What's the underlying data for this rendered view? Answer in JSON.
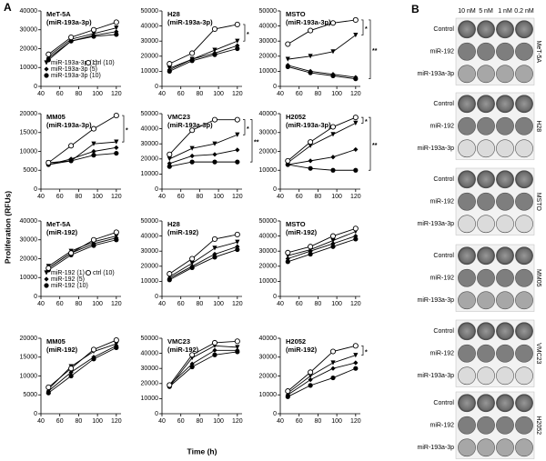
{
  "panel_labels": [
    "A",
    "B"
  ],
  "y_axis_label": "Proliferation (RFUs)",
  "x_axis_label": "Time (h)",
  "chart_data": [
    {
      "type": "line",
      "title": "MeT-5A",
      "subtitle": "(miR-193a-3p)",
      "x": [
        48,
        72,
        96,
        120
      ],
      "xlim": [
        40,
        125
      ],
      "xticks": [
        40,
        60,
        80,
        100,
        120
      ],
      "ylim": [
        0,
        40000
      ],
      "yticks": [
        0,
        10000,
        20000,
        30000,
        40000
      ],
      "legend": "lower",
      "series": [
        {
          "name": "miR-193a-3p (1)",
          "marker": "triangle-down",
          "color": "#000000",
          "values": [
            16000,
            25000,
            28000,
            31000
          ]
        },
        {
          "name": "miR-193a-3p (5)",
          "marker": "diamond",
          "color": "#000000",
          "values": [
            15000,
            24000,
            27000,
            29000
          ]
        },
        {
          "name": "miR-193a-3p (10)",
          "marker": "circle",
          "color": "#000000",
          "values": [
            14000,
            24000,
            26500,
            27500
          ]
        },
        {
          "name": "ctrl (10)",
          "marker": "circle-open",
          "color": "#000000",
          "values": [
            17000,
            26000,
            30000,
            34000
          ]
        }
      ]
    },
    {
      "type": "line",
      "title": "H28",
      "subtitle": "(miR-193a-3p)",
      "x": [
        48,
        72,
        96,
        120
      ],
      "xlim": [
        40,
        125
      ],
      "xticks": [
        40,
        60,
        80,
        100,
        120
      ],
      "ylim": [
        0,
        50000
      ],
      "yticks": [
        0,
        10000,
        20000,
        30000,
        40000,
        50000
      ],
      "annotations": [
        "*"
      ],
      "series": [
        {
          "marker": "triangle-down",
          "color": "#000000",
          "values": [
            12000,
            18000,
            24000,
            30000
          ]
        },
        {
          "marker": "diamond",
          "color": "#000000",
          "values": [
            11000,
            18000,
            22000,
            27000
          ]
        },
        {
          "marker": "circle",
          "color": "#000000",
          "values": [
            10000,
            17000,
            21000,
            25000
          ]
        },
        {
          "marker": "circle-open",
          "color": "#000000",
          "values": [
            15000,
            22000,
            38000,
            41000
          ]
        }
      ]
    },
    {
      "type": "line",
      "title": "MSTO",
      "subtitle": "(miR-193a-3p)",
      "x": [
        48,
        72,
        96,
        120
      ],
      "xlim": [
        40,
        125
      ],
      "xticks": [
        40,
        60,
        80,
        100,
        120
      ],
      "ylim": [
        0,
        50000
      ],
      "yticks": [
        0,
        10000,
        20000,
        30000,
        40000,
        50000
      ],
      "annotations": [
        "*",
        "**"
      ],
      "series": [
        {
          "marker": "triangle-down",
          "color": "#000000",
          "values": [
            18000,
            20000,
            23000,
            34000
          ]
        },
        {
          "marker": "diamond",
          "color": "#000000",
          "values": [
            14000,
            10000,
            8000,
            6000
          ]
        },
        {
          "marker": "circle",
          "color": "#000000",
          "values": [
            13000,
            9000,
            7000,
            5000
          ]
        },
        {
          "marker": "circle-open",
          "color": "#000000",
          "values": [
            28000,
            37000,
            42000,
            44000
          ]
        }
      ]
    },
    {
      "type": "line",
      "title": "MM05",
      "subtitle": "(miR-193a-3p)",
      "x": [
        48,
        72,
        96,
        120
      ],
      "xlim": [
        40,
        125
      ],
      "xticks": [
        40,
        60,
        80,
        100,
        120
      ],
      "ylim": [
        0,
        20000
      ],
      "yticks": [
        0,
        5000,
        10000,
        15000,
        20000
      ],
      "annotations": [
        "*"
      ],
      "series": [
        {
          "marker": "triangle-down",
          "color": "#000000",
          "values": [
            7000,
            7500,
            12000,
            12500
          ]
        },
        {
          "marker": "diamond",
          "color": "#000000",
          "values": [
            6500,
            8000,
            10000,
            11000
          ]
        },
        {
          "marker": "circle",
          "color": "#000000",
          "values": [
            6500,
            7500,
            9000,
            9500
          ]
        },
        {
          "marker": "circle-open",
          "color": "#000000",
          "values": [
            7000,
            11500,
            16000,
            19500
          ]
        }
      ]
    },
    {
      "type": "line",
      "title": "VMC23",
      "subtitle": "(miR-193a-3p)",
      "x": [
        48,
        72,
        96,
        120
      ],
      "xlim": [
        40,
        125
      ],
      "xticks": [
        40,
        60,
        80,
        100,
        120
      ],
      "ylim": [
        0,
        50000
      ],
      "yticks": [
        0,
        10000,
        20000,
        30000,
        40000,
        50000
      ],
      "annotations": [
        "*",
        "**"
      ],
      "series": [
        {
          "marker": "triangle-down",
          "color": "#000000",
          "values": [
            20000,
            27000,
            30000,
            36000
          ]
        },
        {
          "marker": "diamond",
          "color": "#000000",
          "values": [
            17000,
            22000,
            23000,
            26000
          ]
        },
        {
          "marker": "circle",
          "color": "#000000",
          "values": [
            15000,
            18000,
            18000,
            18000
          ]
        },
        {
          "marker": "circle-open",
          "color": "#000000",
          "values": [
            23000,
            39000,
            46000,
            46000
          ]
        }
      ]
    },
    {
      "type": "line",
      "title": "H2052",
      "subtitle": "(miR-193a-3p)",
      "x": [
        48,
        72,
        96,
        120
      ],
      "xlim": [
        40,
        125
      ],
      "xticks": [
        40,
        60,
        80,
        100,
        120
      ],
      "ylim": [
        0,
        40000
      ],
      "yticks": [
        0,
        10000,
        20000,
        30000,
        40000
      ],
      "annotations": [
        "*",
        "**"
      ],
      "series": [
        {
          "marker": "triangle-down",
          "color": "#000000",
          "values": [
            14000,
            23000,
            29000,
            35000
          ]
        },
        {
          "marker": "diamond",
          "color": "#000000",
          "values": [
            13000,
            15000,
            17000,
            21000
          ]
        },
        {
          "marker": "circle",
          "color": "#000000",
          "values": [
            13000,
            11000,
            10000,
            10000
          ]
        },
        {
          "marker": "circle-open",
          "color": "#000000",
          "values": [
            15000,
            25000,
            33000,
            38000
          ]
        }
      ]
    },
    {
      "type": "line",
      "title": "MeT-5A",
      "subtitle": "(miR-192)",
      "x": [
        48,
        72,
        96,
        120
      ],
      "xlim": [
        40,
        125
      ],
      "xticks": [
        40,
        60,
        80,
        100,
        120
      ],
      "ylim": [
        0,
        40000
      ],
      "yticks": [
        0,
        10000,
        20000,
        30000,
        40000
      ],
      "legend": "lower",
      "series": [
        {
          "name": "miR-192 (1)",
          "marker": "triangle-down",
          "color": "#000000",
          "values": [
            16000,
            24000,
            29000,
            32000
          ]
        },
        {
          "name": "miR-192 (5)",
          "marker": "diamond",
          "color": "#000000",
          "values": [
            15000,
            23000,
            28000,
            31000
          ]
        },
        {
          "name": "miR-192 (10)",
          "marker": "circle",
          "color": "#000000",
          "values": [
            14000,
            22000,
            27000,
            30000
          ]
        },
        {
          "name": "ctrl (10)",
          "marker": "circle-open",
          "color": "#000000",
          "values": [
            15000,
            23000,
            30000,
            34000
          ]
        }
      ]
    },
    {
      "type": "line",
      "title": "H28",
      "subtitle": "(miR-192)",
      "x": [
        48,
        72,
        96,
        120
      ],
      "xlim": [
        40,
        125
      ],
      "xticks": [
        40,
        60,
        80,
        100,
        120
      ],
      "ylim": [
        0,
        50000
      ],
      "yticks": [
        0,
        10000,
        20000,
        30000,
        40000,
        50000
      ],
      "series": [
        {
          "marker": "triangle-down",
          "color": "#000000",
          "values": [
            13000,
            22000,
            32000,
            36000
          ]
        },
        {
          "marker": "diamond",
          "color": "#000000",
          "values": [
            12000,
            20000,
            28000,
            33000
          ]
        },
        {
          "marker": "circle",
          "color": "#000000",
          "values": [
            11000,
            19000,
            26000,
            31000
          ]
        },
        {
          "marker": "circle-open",
          "color": "#000000",
          "values": [
            15000,
            25000,
            38000,
            41000
          ]
        }
      ]
    },
    {
      "type": "line",
      "title": "MSTO",
      "subtitle": "(miR-192)",
      "x": [
        48,
        72,
        96,
        120
      ],
      "xlim": [
        40,
        125
      ],
      "xticks": [
        40,
        60,
        80,
        100,
        120
      ],
      "ylim": [
        0,
        50000
      ],
      "yticks": [
        0,
        10000,
        20000,
        30000,
        40000,
        50000
      ],
      "series": [
        {
          "marker": "triangle-down",
          "color": "#000000",
          "values": [
            27000,
            31000,
            37000,
            43000
          ]
        },
        {
          "marker": "diamond",
          "color": "#000000",
          "values": [
            25000,
            30000,
            35000,
            40000
          ]
        },
        {
          "marker": "circle",
          "color": "#000000",
          "values": [
            23000,
            28000,
            33000,
            38000
          ]
        },
        {
          "marker": "circle-open",
          "color": "#000000",
          "values": [
            29000,
            33000,
            40000,
            45000
          ]
        }
      ]
    },
    {
      "type": "line",
      "title": "MM05",
      "subtitle": "(miR-192)",
      "x": [
        48,
        72,
        96,
        120
      ],
      "xlim": [
        40,
        125
      ],
      "xticks": [
        40,
        60,
        80,
        100,
        120
      ],
      "ylim": [
        0,
        20000
      ],
      "yticks": [
        0,
        5000,
        10000,
        15000,
        20000
      ],
      "series": [
        {
          "marker": "triangle-down",
          "color": "#000000",
          "values": [
            6500,
            12500,
            16500,
            18500
          ]
        },
        {
          "marker": "diamond",
          "color": "#000000",
          "values": [
            6000,
            11000,
            15000,
            18000
          ]
        },
        {
          "marker": "circle",
          "color": "#000000",
          "values": [
            5500,
            10000,
            14500,
            17500
          ]
        },
        {
          "marker": "circle-open",
          "color": "#000000",
          "values": [
            7000,
            12000,
            17000,
            19500
          ]
        }
      ]
    },
    {
      "type": "line",
      "title": "VMC23",
      "subtitle": "(miR-192)",
      "x": [
        48,
        72,
        96,
        120
      ],
      "xlim": [
        40,
        125
      ],
      "xticks": [
        40,
        60,
        80,
        100,
        120
      ],
      "ylim": [
        0,
        50000
      ],
      "yticks": [
        0,
        10000,
        20000,
        30000,
        40000,
        50000
      ],
      "series": [
        {
          "marker": "triangle-down",
          "color": "#000000",
          "values": [
            18000,
            37000,
            45000,
            44000
          ]
        },
        {
          "marker": "diamond",
          "color": "#000000",
          "values": [
            19000,
            33000,
            42000,
            42000
          ]
        },
        {
          "marker": "circle",
          "color": "#000000",
          "values": [
            18000,
            31000,
            39000,
            41000
          ]
        },
        {
          "marker": "circle-open",
          "color": "#000000",
          "values": [
            19000,
            39000,
            47000,
            48000
          ]
        }
      ]
    },
    {
      "type": "line",
      "title": "H2052",
      "subtitle": "(miR-192)",
      "x": [
        48,
        72,
        96,
        120
      ],
      "xlim": [
        40,
        125
      ],
      "xticks": [
        40,
        60,
        80,
        100,
        120
      ],
      "ylim": [
        0,
        40000
      ],
      "yticks": [
        0,
        10000,
        20000,
        30000,
        40000
      ],
      "annotations": [
        "*"
      ],
      "series": [
        {
          "marker": "triangle-down",
          "color": "#000000",
          "values": [
            11000,
            20000,
            27000,
            31000
          ]
        },
        {
          "marker": "diamond",
          "color": "#000000",
          "values": [
            10000,
            18000,
            24000,
            27000
          ]
        },
        {
          "marker": "circle",
          "color": "#000000",
          "values": [
            9000,
            15000,
            19000,
            24000
          ]
        },
        {
          "marker": "circle-open",
          "color": "#000000",
          "values": [
            12000,
            22000,
            33000,
            36000
          ]
        }
      ]
    }
  ],
  "panel_b": {
    "columns": [
      "10 nM",
      "5 nM",
      "1 nM",
      "0.2 nM"
    ],
    "groups": [
      {
        "name": "MeT-5A",
        "rows": [
          "Control",
          "miR-192",
          "miR-193a-3p"
        ]
      },
      {
        "name": "H28",
        "rows": [
          "Control",
          "miR-192",
          "miR-193a-3p"
        ]
      },
      {
        "name": "MSTO",
        "rows": [
          "Control",
          "miR-192",
          "miR-193a-3p"
        ]
      },
      {
        "name": "MM05",
        "rows": [
          "Control",
          "miR-192",
          "miR-193a-3p"
        ]
      },
      {
        "name": "VMC23",
        "rows": [
          "Control",
          "miR-192",
          "miR-193a-3p"
        ]
      },
      {
        "name": "H2052",
        "rows": [
          "Control",
          "miR-192",
          "miR-193a-3p"
        ]
      }
    ]
  }
}
